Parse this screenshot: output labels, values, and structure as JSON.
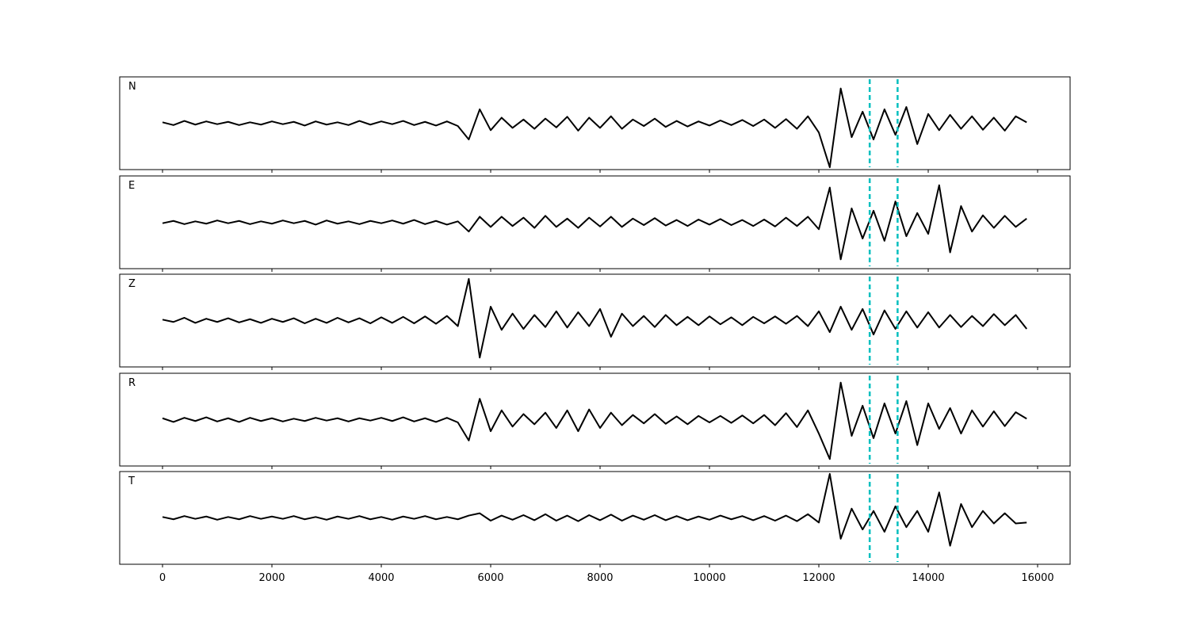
{
  "chart_data": {
    "type": "line",
    "x": [
      0,
      200,
      400,
      600,
      800,
      1000,
      1200,
      1400,
      1600,
      1800,
      2000,
      2200,
      2400,
      2600,
      2800,
      3000,
      3200,
      3400,
      3600,
      3800,
      4000,
      4200,
      4400,
      4600,
      4800,
      5000,
      5200,
      5400,
      5600,
      5800,
      6000,
      6200,
      6400,
      6600,
      6800,
      7000,
      7200,
      7400,
      7600,
      7800,
      8000,
      8200,
      8400,
      8600,
      8800,
      9000,
      9200,
      9400,
      9600,
      9800,
      10000,
      10200,
      10400,
      10600,
      10800,
      11000,
      11200,
      11400,
      11600,
      11800,
      12000,
      12200,
      12400,
      12600,
      12800,
      13000,
      13200,
      13400,
      13600,
      13800,
      14000,
      14200,
      14400,
      14600,
      14800,
      15000,
      15200,
      15400,
      15600,
      15800
    ],
    "xlim": [
      -783,
      16594
    ],
    "xticks": [
      0,
      2000,
      4000,
      6000,
      8000,
      10000,
      12000,
      14000,
      16000
    ],
    "ylim": [
      -1,
      1
    ],
    "color": "#000000",
    "markers": [
      12930,
      13440
    ],
    "marker_color": "#00bfbf",
    "panels": [
      {
        "name": "N",
        "values": [
          0.02,
          -0.04,
          0.05,
          -0.03,
          0.04,
          -0.02,
          0.03,
          -0.04,
          0.02,
          -0.03,
          0.04,
          -0.02,
          0.03,
          -0.05,
          0.04,
          -0.03,
          0.02,
          -0.04,
          0.05,
          -0.03,
          0.04,
          -0.02,
          0.05,
          -0.04,
          0.03,
          -0.05,
          0.04,
          -0.06,
          -0.35,
          0.3,
          -0.15,
          0.12,
          -0.1,
          0.08,
          -0.12,
          0.1,
          -0.09,
          0.14,
          -0.16,
          0.12,
          -0.1,
          0.15,
          -0.12,
          0.08,
          -0.06,
          0.1,
          -0.08,
          0.05,
          -0.07,
          0.04,
          -0.05,
          0.06,
          -0.04,
          0.07,
          -0.06,
          0.08,
          -0.1,
          0.09,
          -0.12,
          0.15,
          -0.2,
          -0.95,
          0.75,
          -0.3,
          0.25,
          -0.35,
          0.3,
          -0.25,
          0.35,
          -0.45,
          0.2,
          -0.15,
          0.18,
          -0.12,
          0.15,
          -0.14,
          0.12,
          -0.16,
          0.15,
          0.02
        ]
      },
      {
        "name": "E",
        "values": [
          -0.02,
          0.03,
          -0.04,
          0.02,
          -0.03,
          0.04,
          -0.02,
          0.03,
          -0.04,
          0.02,
          -0.03,
          0.04,
          -0.02,
          0.03,
          -0.05,
          0.04,
          -0.03,
          0.02,
          -0.04,
          0.03,
          -0.02,
          0.04,
          -0.03,
          0.05,
          -0.04,
          0.03,
          -0.05,
          0.02,
          -0.2,
          0.12,
          -0.1,
          0.12,
          -0.08,
          0.1,
          -0.12,
          0.14,
          -0.1,
          0.08,
          -0.12,
          0.1,
          -0.09,
          0.12,
          -0.1,
          0.08,
          -0.06,
          0.09,
          -0.07,
          0.05,
          -0.08,
          0.06,
          -0.05,
          0.07,
          -0.06,
          0.05,
          -0.08,
          0.06,
          -0.09,
          0.1,
          -0.08,
          0.12,
          -0.15,
          0.75,
          -0.8,
          0.3,
          -0.35,
          0.25,
          -0.4,
          0.45,
          -0.3,
          0.2,
          -0.25,
          0.8,
          -0.65,
          0.35,
          -0.2,
          0.15,
          -0.12,
          0.14,
          -0.1,
          0.08
        ]
      },
      {
        "name": "Z",
        "values": [
          0.02,
          -0.03,
          0.06,
          -0.05,
          0.04,
          -0.03,
          0.05,
          -0.04,
          0.03,
          -0.05,
          0.04,
          -0.03,
          0.05,
          -0.06,
          0.04,
          -0.05,
          0.06,
          -0.04,
          0.05,
          -0.06,
          0.07,
          -0.05,
          0.08,
          -0.06,
          0.09,
          -0.07,
          0.1,
          -0.12,
          0.9,
          -0.8,
          0.3,
          -0.2,
          0.15,
          -0.18,
          0.12,
          -0.14,
          0.2,
          -0.15,
          0.18,
          -0.12,
          0.25,
          -0.35,
          0.15,
          -0.12,
          0.1,
          -0.14,
          0.12,
          -0.1,
          0.08,
          -0.1,
          0.09,
          -0.08,
          0.07,
          -0.1,
          0.08,
          -0.06,
          0.09,
          -0.07,
          0.1,
          -0.12,
          0.2,
          -0.25,
          0.3,
          -0.2,
          0.25,
          -0.3,
          0.22,
          -0.18,
          0.2,
          -0.15,
          0.18,
          -0.15,
          0.12,
          -0.14,
          0.1,
          -0.12,
          0.14,
          -0.1,
          0.12,
          -0.18
        ]
      },
      {
        "name": "R",
        "values": [
          0.03,
          -0.05,
          0.04,
          -0.03,
          0.05,
          -0.04,
          0.03,
          -0.05,
          0.04,
          -0.03,
          0.03,
          -0.04,
          0.02,
          -0.03,
          0.04,
          -0.02,
          0.03,
          -0.04,
          0.03,
          -0.02,
          0.04,
          -0.03,
          0.05,
          -0.04,
          0.03,
          -0.05,
          0.04,
          -0.06,
          -0.45,
          0.45,
          -0.25,
          0.2,
          -0.15,
          0.12,
          -0.1,
          0.15,
          -0.18,
          0.2,
          -0.25,
          0.22,
          -0.18,
          0.15,
          -0.12,
          0.1,
          -0.08,
          0.12,
          -0.09,
          0.07,
          -0.1,
          0.08,
          -0.06,
          0.08,
          -0.07,
          0.09,
          -0.08,
          0.1,
          -0.12,
          0.14,
          -0.16,
          0.2,
          -0.3,
          -0.85,
          0.8,
          -0.35,
          0.3,
          -0.4,
          0.35,
          -0.3,
          0.4,
          -0.55,
          0.35,
          -0.2,
          0.25,
          -0.3,
          0.2,
          -0.15,
          0.18,
          -0.14,
          0.16,
          0.02
        ]
      },
      {
        "name": "T",
        "values": [
          0.02,
          -0.03,
          0.04,
          -0.02,
          0.03,
          -0.04,
          0.02,
          -0.03,
          0.04,
          -0.02,
          0.03,
          -0.02,
          0.04,
          -0.03,
          0.02,
          -0.04,
          0.03,
          -0.02,
          0.04,
          -0.03,
          0.02,
          -0.04,
          0.03,
          -0.02,
          0.04,
          -0.03,
          0.02,
          -0.03,
          0.05,
          0.1,
          -0.06,
          0.05,
          -0.04,
          0.06,
          -0.05,
          0.08,
          -0.06,
          0.05,
          -0.07,
          0.06,
          -0.05,
          0.07,
          -0.06,
          0.05,
          -0.04,
          0.06,
          -0.05,
          0.04,
          -0.05,
          0.03,
          -0.04,
          0.05,
          -0.03,
          0.04,
          -0.05,
          0.04,
          -0.06,
          0.05,
          -0.07,
          0.08,
          -0.1,
          0.95,
          -0.45,
          0.2,
          -0.25,
          0.15,
          -0.3,
          0.25,
          -0.2,
          0.15,
          -0.3,
          0.55,
          -0.6,
          0.3,
          -0.2,
          0.15,
          -0.12,
          0.1,
          -0.12,
          -0.1
        ]
      }
    ]
  }
}
